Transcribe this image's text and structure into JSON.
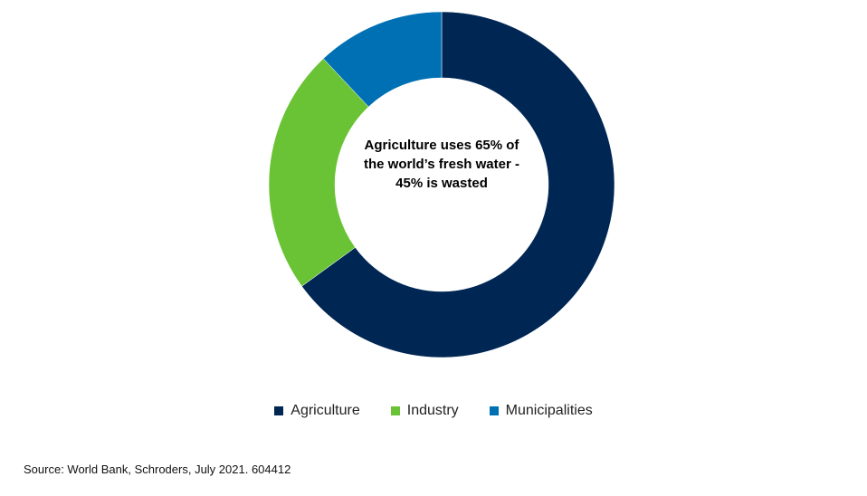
{
  "chart_data": {
    "type": "pie",
    "style": "donut",
    "title": "",
    "center_text": "Agriculture uses 65% of the world’s fresh water - 45% is wasted",
    "categories": [
      "Agriculture",
      "Industry",
      "Municipalities"
    ],
    "values": [
      65,
      23,
      12
    ],
    "unit": "%",
    "colors": [
      "#002654",
      "#6ac335",
      "#0070b5"
    ],
    "legend_position": "bottom-center",
    "start_angle": "12 o'clock",
    "direction": "clockwise"
  },
  "legend": {
    "items": [
      {
        "label": "Agriculture",
        "color": "#002654"
      },
      {
        "label": "Industry",
        "color": "#6ac335"
      },
      {
        "label": "Municipalities",
        "color": "#0070b5"
      }
    ]
  },
  "source": "Source: World Bank, Schroders, July 2021. 604412"
}
